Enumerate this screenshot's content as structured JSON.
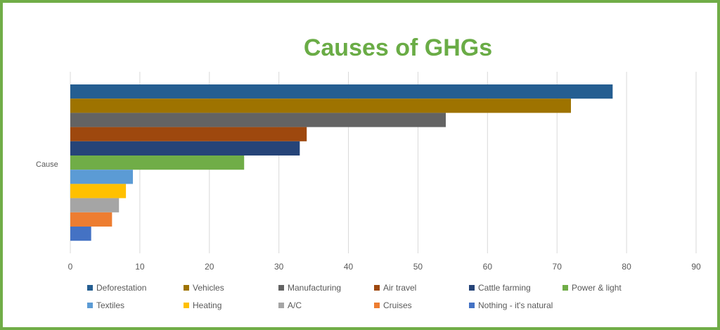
{
  "chart_data": {
    "type": "bar",
    "orientation": "horizontal",
    "title": "Causes of GHGs",
    "title_color": "#6aac46",
    "xlabel": "",
    "ylabel": "Cause",
    "xlim": [
      0,
      90
    ],
    "x_ticks": [
      "0",
      "10",
      "20",
      "30",
      "40",
      "50",
      "60",
      "70",
      "80",
      "90"
    ],
    "grid": true,
    "legend_position": "bottom",
    "categories": [
      "Cause"
    ],
    "series": [
      {
        "name": "Deforestation",
        "values": [
          78
        ],
        "color": "#255e91"
      },
      {
        "name": "Vehicles",
        "values": [
          72
        ],
        "color": "#9e7300"
      },
      {
        "name": "Manufacturing",
        "values": [
          54
        ],
        "color": "#636363"
      },
      {
        "name": "Air travel",
        "values": [
          34
        ],
        "color": "#9e480e"
      },
      {
        "name": "Cattle farming",
        "values": [
          33
        ],
        "color": "#264478"
      },
      {
        "name": "Power & light",
        "values": [
          25
        ],
        "color": "#70ad47"
      },
      {
        "name": "Textiles",
        "values": [
          9
        ],
        "color": "#5b9bd5"
      },
      {
        "name": "Heating",
        "values": [
          8
        ],
        "color": "#ffc000"
      },
      {
        "name": "A/C",
        "values": [
          7
        ],
        "color": "#a5a5a5"
      },
      {
        "name": "Cruises",
        "values": [
          6
        ],
        "color": "#ed7d31"
      },
      {
        "name": "Nothing - it's natural",
        "values": [
          3
        ],
        "color": "#4472c4"
      }
    ]
  }
}
